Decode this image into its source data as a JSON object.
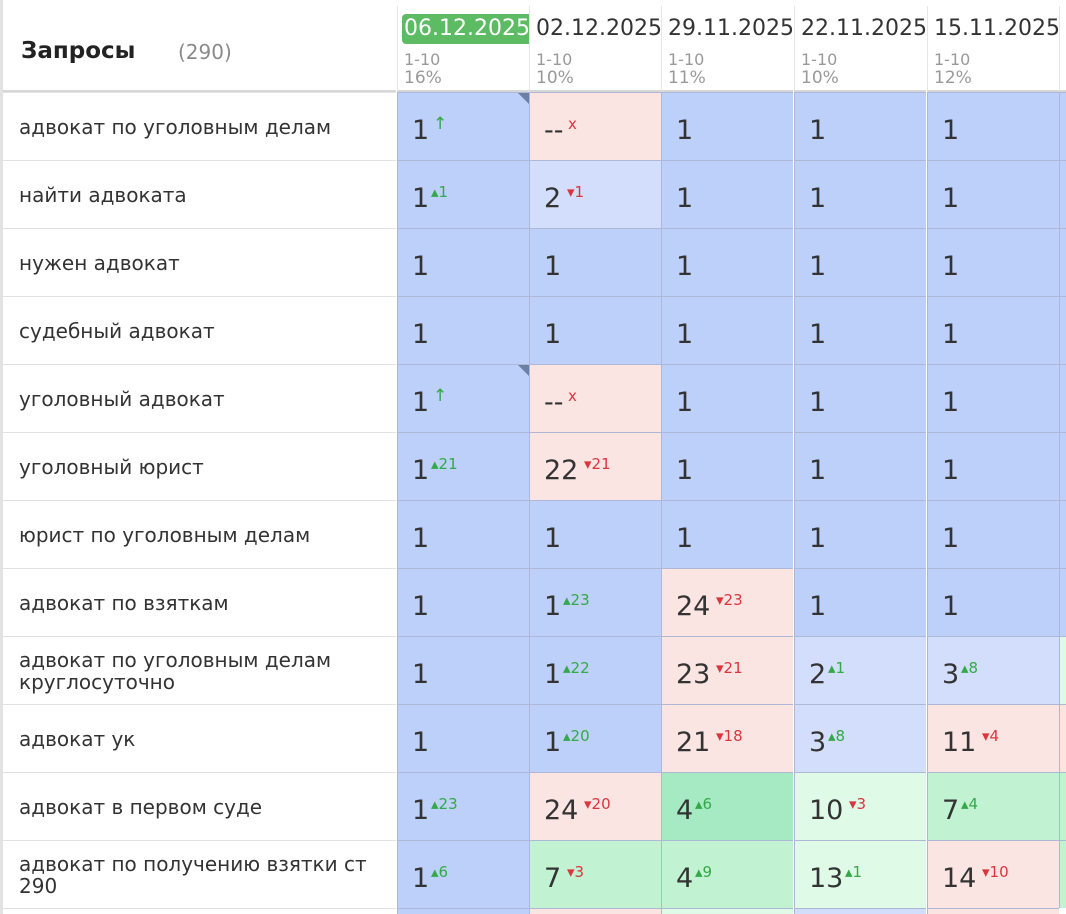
{
  "header": {
    "title": "Запросы",
    "count": "(290)"
  },
  "dates": [
    {
      "date": "06.12.2025",
      "range": "1-10",
      "pct": "16%",
      "active": true
    },
    {
      "date": "02.12.2025",
      "range": "1-10",
      "pct": "10%",
      "active": false
    },
    {
      "date": "29.11.2025",
      "range": "1-10",
      "pct": "11%",
      "active": false
    },
    {
      "date": "22.11.2025",
      "range": "1-10",
      "pct": "10%",
      "active": false
    },
    {
      "date": "15.11.2025",
      "range": "1-10",
      "pct": "12%",
      "active": false
    }
  ],
  "rows": [
    {
      "query": "адвокат по уголовным делам",
      "cells": [
        {
          "pos": "1",
          "change": "↑",
          "dir": "new",
          "bg": "b1",
          "flag": true
        },
        {
          "pos": "--",
          "change": "x",
          "dir": "x",
          "bg": "r1"
        },
        {
          "pos": "1",
          "change": "",
          "dir": "",
          "bg": "b1"
        },
        {
          "pos": "1",
          "change": "",
          "dir": "",
          "bg": "b1"
        },
        {
          "pos": "1",
          "change": "",
          "dir": "",
          "bg": "b1"
        }
      ]
    },
    {
      "query": "найти адвоката",
      "cells": [
        {
          "pos": "1",
          "change": "▴1",
          "dir": "up",
          "bg": "b1"
        },
        {
          "pos": "2",
          "change": "▾1",
          "dir": "down",
          "bg": "b2"
        },
        {
          "pos": "1",
          "change": "",
          "dir": "",
          "bg": "b1"
        },
        {
          "pos": "1",
          "change": "",
          "dir": "",
          "bg": "b1"
        },
        {
          "pos": "1",
          "change": "",
          "dir": "",
          "bg": "b1"
        }
      ]
    },
    {
      "query": "нужен адвокат",
      "cells": [
        {
          "pos": "1",
          "change": "",
          "dir": "",
          "bg": "b1"
        },
        {
          "pos": "1",
          "change": "",
          "dir": "",
          "bg": "b1"
        },
        {
          "pos": "1",
          "change": "",
          "dir": "",
          "bg": "b1"
        },
        {
          "pos": "1",
          "change": "",
          "dir": "",
          "bg": "b1"
        },
        {
          "pos": "1",
          "change": "",
          "dir": "",
          "bg": "b1"
        }
      ]
    },
    {
      "query": "судебный адвокат",
      "cells": [
        {
          "pos": "1",
          "change": "",
          "dir": "",
          "bg": "b1"
        },
        {
          "pos": "1",
          "change": "",
          "dir": "",
          "bg": "b1"
        },
        {
          "pos": "1",
          "change": "",
          "dir": "",
          "bg": "b1"
        },
        {
          "pos": "1",
          "change": "",
          "dir": "",
          "bg": "b1"
        },
        {
          "pos": "1",
          "change": "",
          "dir": "",
          "bg": "b1"
        }
      ]
    },
    {
      "query": "уголовный адвокат",
      "cells": [
        {
          "pos": "1",
          "change": "↑",
          "dir": "new",
          "bg": "b1",
          "flag": true
        },
        {
          "pos": "--",
          "change": "x",
          "dir": "x",
          "bg": "r1"
        },
        {
          "pos": "1",
          "change": "",
          "dir": "",
          "bg": "b1"
        },
        {
          "pos": "1",
          "change": "",
          "dir": "",
          "bg": "b1"
        },
        {
          "pos": "1",
          "change": "",
          "dir": "",
          "bg": "b1"
        }
      ]
    },
    {
      "query": "уголовный юрист",
      "cells": [
        {
          "pos": "1",
          "change": "▴21",
          "dir": "up",
          "bg": "b1"
        },
        {
          "pos": "22",
          "change": "▾21",
          "dir": "down",
          "bg": "r1"
        },
        {
          "pos": "1",
          "change": "",
          "dir": "",
          "bg": "b1"
        },
        {
          "pos": "1",
          "change": "",
          "dir": "",
          "bg": "b1"
        },
        {
          "pos": "1",
          "change": "",
          "dir": "",
          "bg": "b1"
        }
      ]
    },
    {
      "query": "юрист по уголовным делам",
      "cells": [
        {
          "pos": "1",
          "change": "",
          "dir": "",
          "bg": "b1"
        },
        {
          "pos": "1",
          "change": "",
          "dir": "",
          "bg": "b1"
        },
        {
          "pos": "1",
          "change": "",
          "dir": "",
          "bg": "b1"
        },
        {
          "pos": "1",
          "change": "",
          "dir": "",
          "bg": "b1"
        },
        {
          "pos": "1",
          "change": "",
          "dir": "",
          "bg": "b1"
        }
      ]
    },
    {
      "query": "адвокат по взяткам",
      "cells": [
        {
          "pos": "1",
          "change": "",
          "dir": "",
          "bg": "b1"
        },
        {
          "pos": "1",
          "change": "▴23",
          "dir": "up",
          "bg": "b1"
        },
        {
          "pos": "24",
          "change": "▾23",
          "dir": "down",
          "bg": "r1"
        },
        {
          "pos": "1",
          "change": "",
          "dir": "",
          "bg": "b1"
        },
        {
          "pos": "1",
          "change": "",
          "dir": "",
          "bg": "b1"
        }
      ]
    },
    {
      "query": "адвокат по уголовным делам круглосуточно",
      "cells": [
        {
          "pos": "1",
          "change": "",
          "dir": "",
          "bg": "b1"
        },
        {
          "pos": "1",
          "change": "▴22",
          "dir": "up",
          "bg": "b1"
        },
        {
          "pos": "23",
          "change": "▾21",
          "dir": "down",
          "bg": "r1"
        },
        {
          "pos": "2",
          "change": "▴1",
          "dir": "up",
          "bg": "b2"
        },
        {
          "pos": "3",
          "change": "▴8",
          "dir": "up",
          "bg": "b2"
        }
      ]
    },
    {
      "query": "адвокат ук",
      "cells": [
        {
          "pos": "1",
          "change": "",
          "dir": "",
          "bg": "b1"
        },
        {
          "pos": "1",
          "change": "▴20",
          "dir": "up",
          "bg": "b1"
        },
        {
          "pos": "21",
          "change": "▾18",
          "dir": "down",
          "bg": "r1"
        },
        {
          "pos": "3",
          "change": "▴8",
          "dir": "up",
          "bg": "b2"
        },
        {
          "pos": "11",
          "change": "▾4",
          "dir": "down",
          "bg": "r1"
        }
      ]
    },
    {
      "query": "адвокат в первом суде",
      "cells": [
        {
          "pos": "1",
          "change": "▴23",
          "dir": "up",
          "bg": "b1"
        },
        {
          "pos": "24",
          "change": "▾20",
          "dir": "down",
          "bg": "r1"
        },
        {
          "pos": "4",
          "change": "▴6",
          "dir": "up",
          "bg": "g2"
        },
        {
          "pos": "10",
          "change": "▾3",
          "dir": "down",
          "bg": "g3"
        },
        {
          "pos": "7",
          "change": "▴4",
          "dir": "up",
          "bg": "g1"
        }
      ]
    },
    {
      "query": "адвокат по получению взятки ст 290",
      "cells": [
        {
          "pos": "1",
          "change": "▴6",
          "dir": "up",
          "bg": "b1"
        },
        {
          "pos": "7",
          "change": "▾3",
          "dir": "down",
          "bg": "g1"
        },
        {
          "pos": "4",
          "change": "▴9",
          "dir": "up",
          "bg": "g1"
        },
        {
          "pos": "13",
          "change": "▴1",
          "dir": "up",
          "bg": "g3"
        },
        {
          "pos": "14",
          "change": "▾10",
          "dir": "down",
          "bg": "r1"
        }
      ]
    }
  ],
  "edge_cells": [
    "b1",
    "b1",
    "b1",
    "b1",
    "b1",
    "b1",
    "b1",
    "b1",
    "g3",
    "r1",
    "g1",
    "g1"
  ],
  "colors": {
    "top_blue": "#bcd0fa",
    "light_blue": "#d2defc",
    "pink": "#fae5e3",
    "green": "#c1f2d2",
    "green_strong": "#a6eac3",
    "green_light": "#dffbe8",
    "active_date": "#5dbb63",
    "up": "#35a84a",
    "down": "#d9363e"
  }
}
